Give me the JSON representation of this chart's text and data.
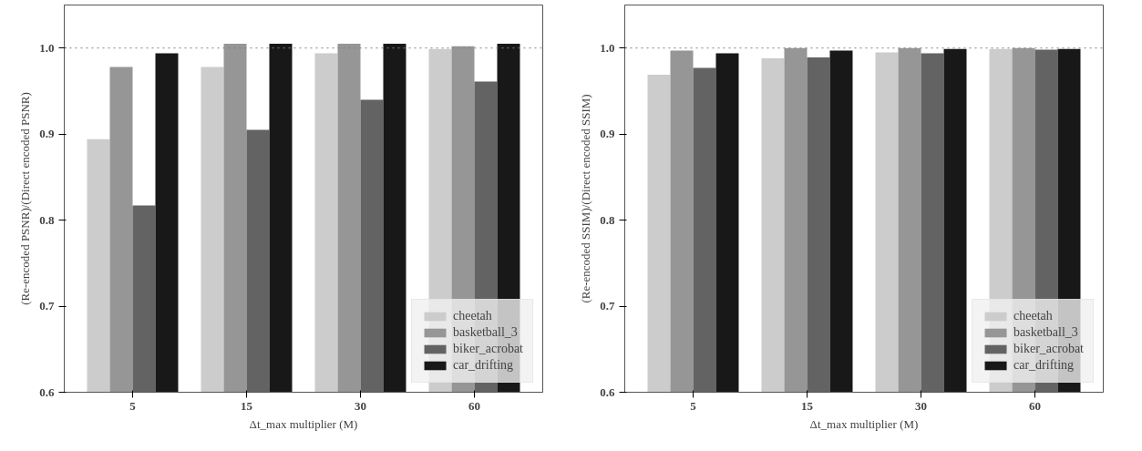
{
  "chart_data": [
    {
      "type": "bar",
      "categories": [
        "5",
        "15",
        "30",
        "60"
      ],
      "xlabel": "Δt_max multiplier (M)",
      "ylabel": "(Re-encoded PSNR)/(Direct encoded PSNR)",
      "ylim": [
        0.6,
        1.05
      ],
      "yticks": [
        0.6,
        0.7,
        0.8,
        0.9,
        {
          "value": 1.0,
          "label": "1.0"
        }
      ],
      "grid": false,
      "legend": "bottom right",
      "ref_lines": [
        {
          "axis": "y",
          "value": 1.0,
          "line_style": "dotted",
          "color": "#808080"
        }
      ],
      "series": [
        {
          "name": "cheetah",
          "color": "#cccccc",
          "values": [
            0.894,
            0.978,
            0.994,
            0.999
          ]
        },
        {
          "name": "basketball_3",
          "color": "#969696",
          "values": [
            0.978,
            1.005,
            1.005,
            1.002
          ]
        },
        {
          "name": "biker_acrobat",
          "color": "#636363",
          "values": [
            0.817,
            0.905,
            0.94,
            0.961
          ]
        },
        {
          "name": "car_drifting",
          "color": "#181818",
          "values": [
            0.994,
            1.005,
            1.005,
            1.005
          ]
        }
      ]
    },
    {
      "type": "bar",
      "categories": [
        "5",
        "15",
        "30",
        "60"
      ],
      "xlabel": "Δt_max multiplier (M)",
      "ylabel": "(Re-encoded SSIM)/(Direct encoded SSIM)",
      "ylim": [
        0.6,
        1.05
      ],
      "yticks": [
        0.6,
        0.7,
        0.8,
        0.9,
        {
          "value": 1.0,
          "label": "1.0"
        }
      ],
      "grid": false,
      "legend": "bottom right",
      "ref_lines": [
        {
          "axis": "y",
          "value": 1.0,
          "line_style": "dotted",
          "color": "#808080"
        }
      ],
      "series": [
        {
          "name": "cheetah",
          "color": "#cccccc",
          "values": [
            0.969,
            0.988,
            0.995,
            0.999
          ]
        },
        {
          "name": "basketball_3",
          "color": "#969696",
          "values": [
            0.997,
            1.0,
            1.0,
            1.0
          ]
        },
        {
          "name": "biker_acrobat",
          "color": "#636363",
          "values": [
            0.977,
            0.989,
            0.994,
            0.998
          ]
        },
        {
          "name": "car_drifting",
          "color": "#181818",
          "values": [
            0.994,
            0.997,
            0.999,
            0.999
          ]
        }
      ]
    }
  ]
}
